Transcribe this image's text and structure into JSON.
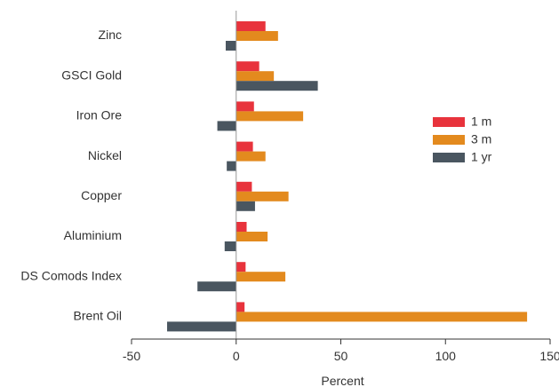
{
  "chart_data": {
    "type": "bar",
    "orientation": "horizontal",
    "categories": [
      "Zinc",
      "GSCI Gold",
      "Iron Ore",
      "Nickel",
      "Copper",
      "Aluminium",
      "DS Comods Index",
      "Brent Oil"
    ],
    "series": [
      {
        "name": "1 m",
        "color": "#e8333c",
        "values": [
          14,
          11,
          8.5,
          8,
          7.5,
          5,
          4.5,
          4
        ]
      },
      {
        "name": "3 m",
        "color": "#e38a1e",
        "values": [
          20,
          18,
          32,
          14,
          25,
          15,
          23.5,
          139
        ]
      },
      {
        "name": "1 yr",
        "color": "#4a5660",
        "values": [
          -5,
          39,
          -9,
          -4.5,
          9,
          -5.5,
          -18.5,
          -33
        ]
      }
    ],
    "xlabel": "Percent",
    "ylabel": "",
    "xlim": [
      -50,
      150
    ],
    "xticks": [
      "-50",
      "0",
      "50",
      "100",
      "150"
    ],
    "xtick_values": [
      -50,
      0,
      50,
      100,
      150
    ],
    "grid": false,
    "legend_position": "right"
  }
}
